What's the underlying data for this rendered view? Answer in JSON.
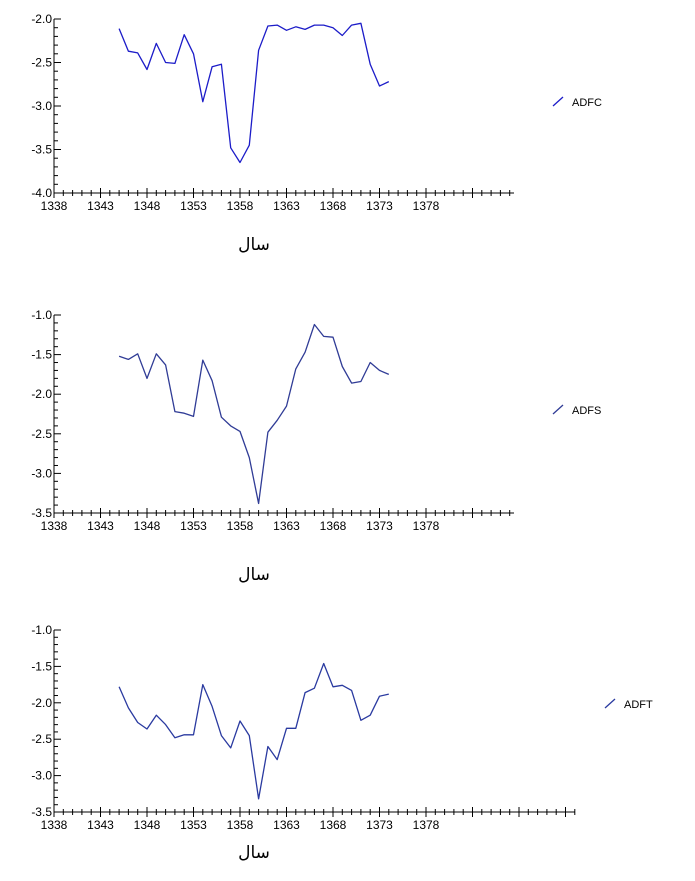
{
  "chart_data": [
    {
      "type": "line",
      "xlabel": "سال",
      "x_ticks": [
        1338,
        1343,
        1348,
        1353,
        1358,
        1363,
        1368,
        1373,
        1378
      ],
      "y_ticks": [
        "-2.0",
        "-2.5",
        "-3.0",
        "-3.5",
        "-4.0"
      ],
      "xlim": [
        1338,
        1383
      ],
      "ylim": [
        -4.0,
        -2.0
      ],
      "grid": false,
      "legend_position": "right",
      "series": [
        {
          "name": "ADFC",
          "color": "#1c1cc8",
          "x": [
            1345,
            1346,
            1347,
            1348,
            1349,
            1350,
            1351,
            1352,
            1353,
            1354,
            1355,
            1356,
            1357,
            1358,
            1359,
            1360,
            1361,
            1362,
            1363,
            1364,
            1365,
            1366,
            1367,
            1368,
            1369,
            1370,
            1371,
            1372,
            1373,
            1374
          ],
          "y": [
            -2.11,
            -2.37,
            -2.39,
            -2.58,
            -2.28,
            -2.5,
            -2.51,
            -2.18,
            -2.4,
            -2.95,
            -2.55,
            -2.52,
            -3.48,
            -3.65,
            -3.45,
            -2.36,
            -2.08,
            -2.07,
            -2.13,
            -2.09,
            -2.12,
            -2.07,
            -2.07,
            -2.1,
            -2.19,
            -2.07,
            -2.05,
            -2.52,
            -2.77,
            -2.72
          ]
        }
      ]
    },
    {
      "type": "line",
      "xlabel": "سال",
      "x_ticks": [
        1338,
        1343,
        1348,
        1353,
        1358,
        1363,
        1368,
        1373,
        1378
      ],
      "y_ticks": [
        "-1.0",
        "-1.5",
        "-2.0",
        "-2.5",
        "-3.0",
        "-3.5"
      ],
      "xlim": [
        1338,
        1383
      ],
      "ylim": [
        -3.5,
        -1.0
      ],
      "grid": false,
      "legend_position": "right",
      "series": [
        {
          "name": "ADFS",
          "color": "#303c96",
          "x": [
            1345,
            1346,
            1347,
            1348,
            1349,
            1350,
            1351,
            1352,
            1353,
            1354,
            1355,
            1356,
            1357,
            1358,
            1359,
            1360,
            1361,
            1362,
            1363,
            1364,
            1365,
            1366,
            1367,
            1368,
            1369,
            1370,
            1371,
            1372,
            1373,
            1374
          ],
          "y": [
            -1.52,
            -1.56,
            -1.49,
            -1.8,
            -1.49,
            -1.63,
            -2.22,
            -2.24,
            -2.28,
            -1.57,
            -1.83,
            -2.29,
            -2.4,
            -2.47,
            -2.8,
            -3.38,
            -2.48,
            -2.33,
            -2.15,
            -1.68,
            -1.47,
            -1.12,
            -1.27,
            -1.28,
            -1.65,
            -1.86,
            -1.84,
            -1.6,
            -1.7,
            -1.75
          ]
        }
      ]
    },
    {
      "type": "line",
      "xlabel": "سال",
      "x_ticks": [
        1338,
        1343,
        1348,
        1353,
        1358,
        1363,
        1368,
        1373,
        1378
      ],
      "y_ticks": [
        "-1.0",
        "-1.5",
        "-2.0",
        "-2.5",
        "-3.0",
        "-3.5"
      ],
      "xlim": [
        1338,
        1383
      ],
      "ylim": [
        -3.5,
        -1.0
      ],
      "grid": false,
      "legend_position": "right",
      "series": [
        {
          "name": "ADFT",
          "color": "#2a3aa0",
          "x": [
            1345,
            1346,
            1347,
            1348,
            1349,
            1350,
            1351,
            1352,
            1353,
            1354,
            1355,
            1356,
            1357,
            1358,
            1359,
            1360,
            1361,
            1362,
            1363,
            1364,
            1365,
            1366,
            1367,
            1368,
            1369,
            1370,
            1371,
            1372,
            1373,
            1374
          ],
          "y": [
            -1.78,
            -2.07,
            -2.27,
            -2.36,
            -2.17,
            -2.3,
            -2.48,
            -2.44,
            -2.44,
            -1.75,
            -2.05,
            -2.45,
            -2.62,
            -2.25,
            -2.45,
            -3.32,
            -2.6,
            -2.78,
            -2.35,
            -2.35,
            -1.86,
            -1.8,
            -1.46,
            -1.78,
            -1.76,
            -1.83,
            -2.24,
            -2.17,
            -1.91,
            -1.88
          ]
        }
      ]
    }
  ]
}
